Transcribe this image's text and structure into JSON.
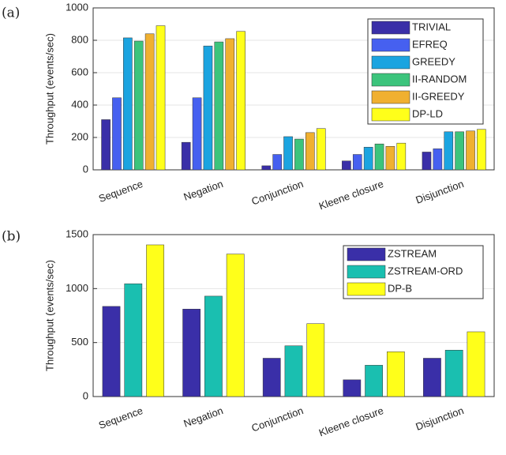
{
  "chart_data": [
    {
      "type": "bar",
      "panel_label": "(a)",
      "ylabel": "Throughput (events/sec)",
      "categories": [
        "Sequence",
        "Negation",
        "Conjunction",
        "Kleene closure",
        "Disjunction"
      ],
      "series": [
        {
          "name": "TRIVIAL",
          "color": "#3a2fa8",
          "values": [
            310,
            170,
            25,
            55,
            110
          ]
        },
        {
          "name": "EFREQ",
          "color": "#4660f0",
          "values": [
            445,
            445,
            95,
            95,
            130
          ]
        },
        {
          "name": "GREEDY",
          "color": "#1ba4e0",
          "values": [
            815,
            765,
            205,
            140,
            235
          ]
        },
        {
          "name": "II-RANDOM",
          "color": "#3cc47c",
          "values": [
            795,
            790,
            190,
            160,
            235
          ]
        },
        {
          "name": "II-GREEDY",
          "color": "#f0b030",
          "values": [
            840,
            810,
            230,
            145,
            240
          ]
        },
        {
          "name": "DP-LD",
          "color": "#ffff1a",
          "values": [
            890,
            855,
            255,
            165,
            250
          ]
        }
      ],
      "ylim": [
        0,
        1000
      ],
      "yticks": [
        0,
        200,
        400,
        600,
        800,
        1000
      ],
      "grid": true,
      "legend": "upper right"
    },
    {
      "type": "bar",
      "panel_label": "(b)",
      "ylabel": "Throughput (events/sec)",
      "categories": [
        "Sequence",
        "Negation",
        "Conjunction",
        "Kleene closure",
        "Disjunction"
      ],
      "series": [
        {
          "name": "ZSTREAM",
          "color": "#3a2fa8",
          "values": [
            835,
            810,
            355,
            155,
            355
          ]
        },
        {
          "name": "ZSTREAM-ORD",
          "color": "#1abfb0",
          "values": [
            1045,
            930,
            470,
            290,
            430
          ]
        },
        {
          "name": "DP-B",
          "color": "#ffff1a",
          "values": [
            1405,
            1320,
            675,
            415,
            600
          ]
        }
      ],
      "ylim": [
        0,
        1500
      ],
      "yticks": [
        0,
        500,
        1000,
        1500
      ],
      "grid": true,
      "legend": "upper right"
    }
  ]
}
